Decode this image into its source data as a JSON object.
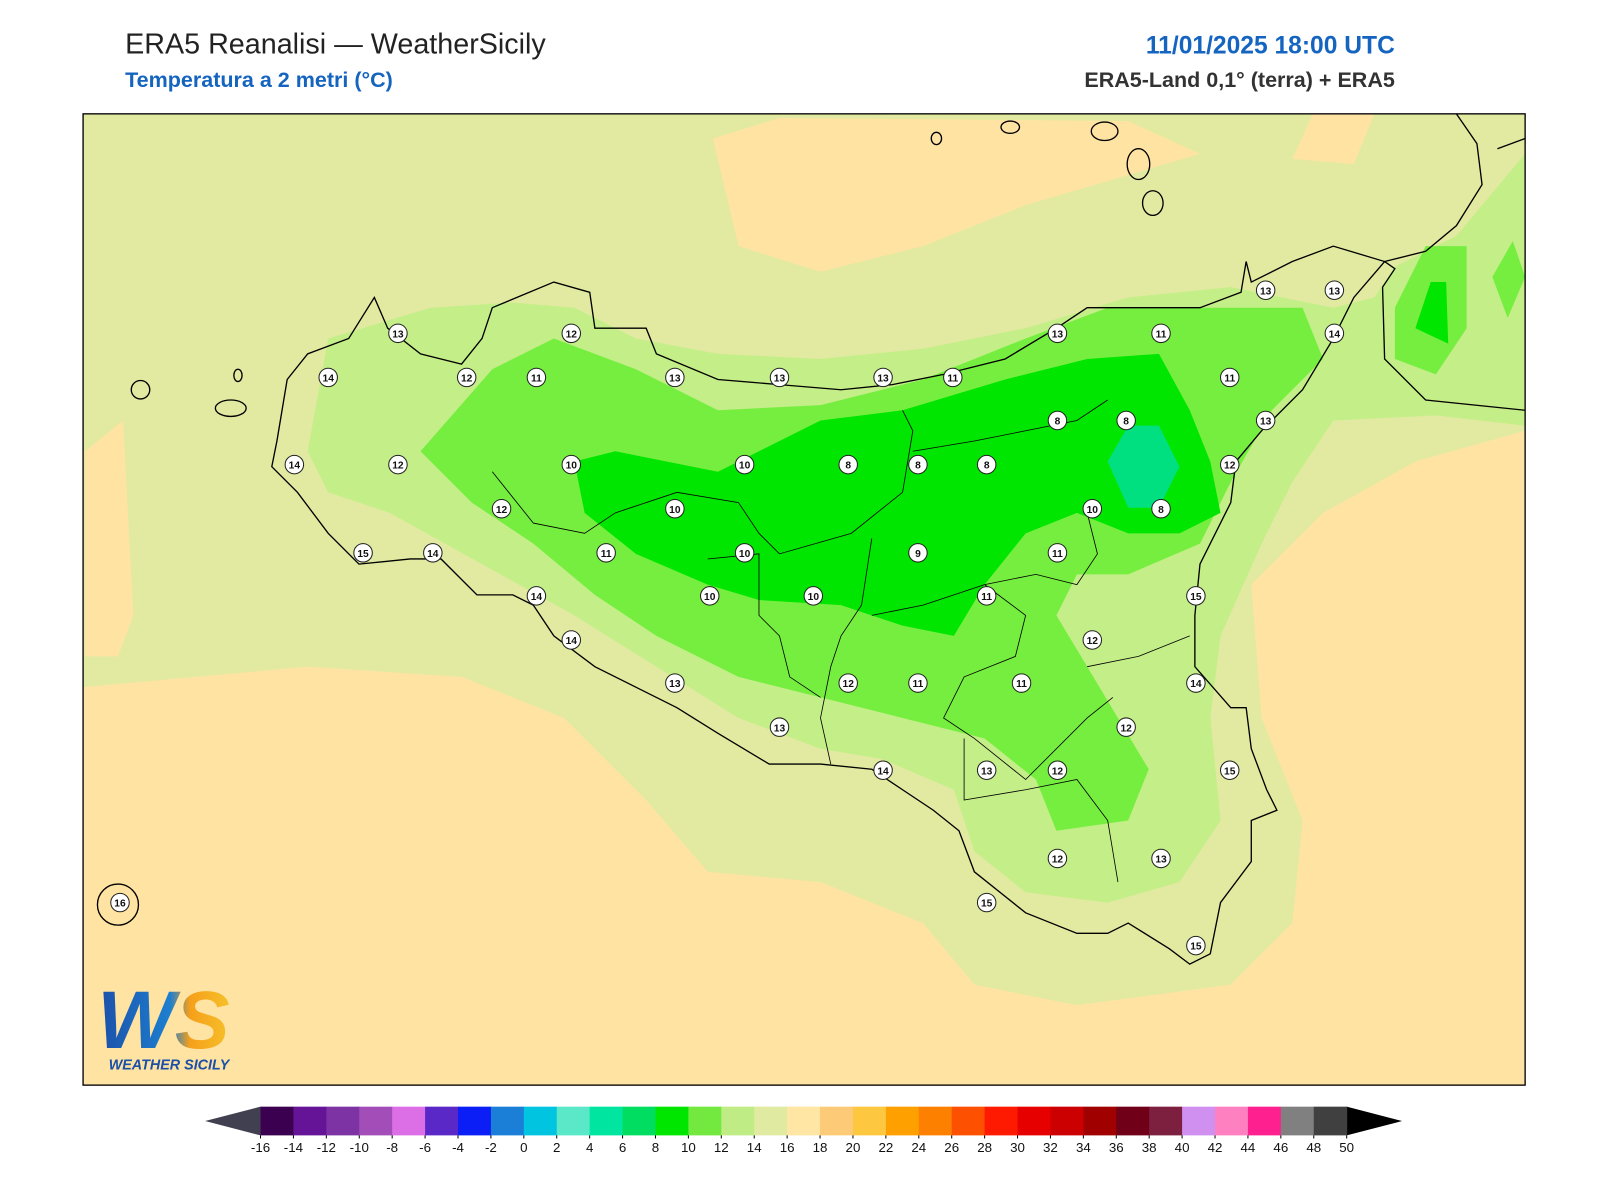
{
  "header": {
    "title": "ERA5 Reanalisi — WeatherSicily",
    "subtitle": "Temperatura a 2 metri (°C)",
    "datetime": "11/01/2025 18:00 UTC",
    "source": "ERA5-Land 0,1° (terra) + ERA5"
  },
  "map": {
    "stations": [
      13,
      12,
      14,
      12,
      11,
      13,
      13,
      13,
      11,
      13,
      11,
      13,
      13,
      14,
      11,
      13,
      8,
      8,
      14,
      12,
      10,
      10,
      8,
      8,
      8,
      12,
      12,
      10,
      10,
      8,
      15,
      14,
      11,
      10,
      9,
      11,
      14,
      10,
      10,
      11,
      15,
      14,
      12,
      13,
      12,
      11,
      11,
      14,
      13,
      12,
      14,
      13,
      12,
      15,
      12,
      13,
      15,
      15,
      16
    ]
  },
  "logo": {
    "mark": "WS",
    "name": "WEATHER SICILY"
  },
  "colorbar": {
    "ticks": [
      -16,
      -14,
      -12,
      -10,
      -8,
      -6,
      -4,
      -2,
      0,
      2,
      4,
      6,
      8,
      10,
      12,
      14,
      16,
      18,
      20,
      22,
      24,
      26,
      28,
      30,
      32,
      34,
      36,
      38,
      40,
      42,
      44,
      46,
      48,
      50
    ],
    "colors": [
      "#3c0050",
      "#651497",
      "#7d33a3",
      "#a24db8",
      "#dc6fe6",
      "#5b28c8",
      "#0a1ef5",
      "#1b7fd8",
      "#00c4e0",
      "#5ae8c8",
      "#00e6a0",
      "#00dd60",
      "#00e600",
      "#73e83f",
      "#c0ec85",
      "#e0eaa0",
      "#ffe6a5",
      "#fdcb78",
      "#fdc840",
      "#fda000",
      "#fd8000",
      "#fd5000",
      "#fd1a00",
      "#e60000",
      "#cc0000",
      "#a00000",
      "#700018",
      "#7d2040",
      "#d090f0",
      "#ff80c0",
      "#ff2090",
      "#808080",
      "#404040"
    ],
    "under_color": "#404050",
    "over_color": "#000000"
  }
}
